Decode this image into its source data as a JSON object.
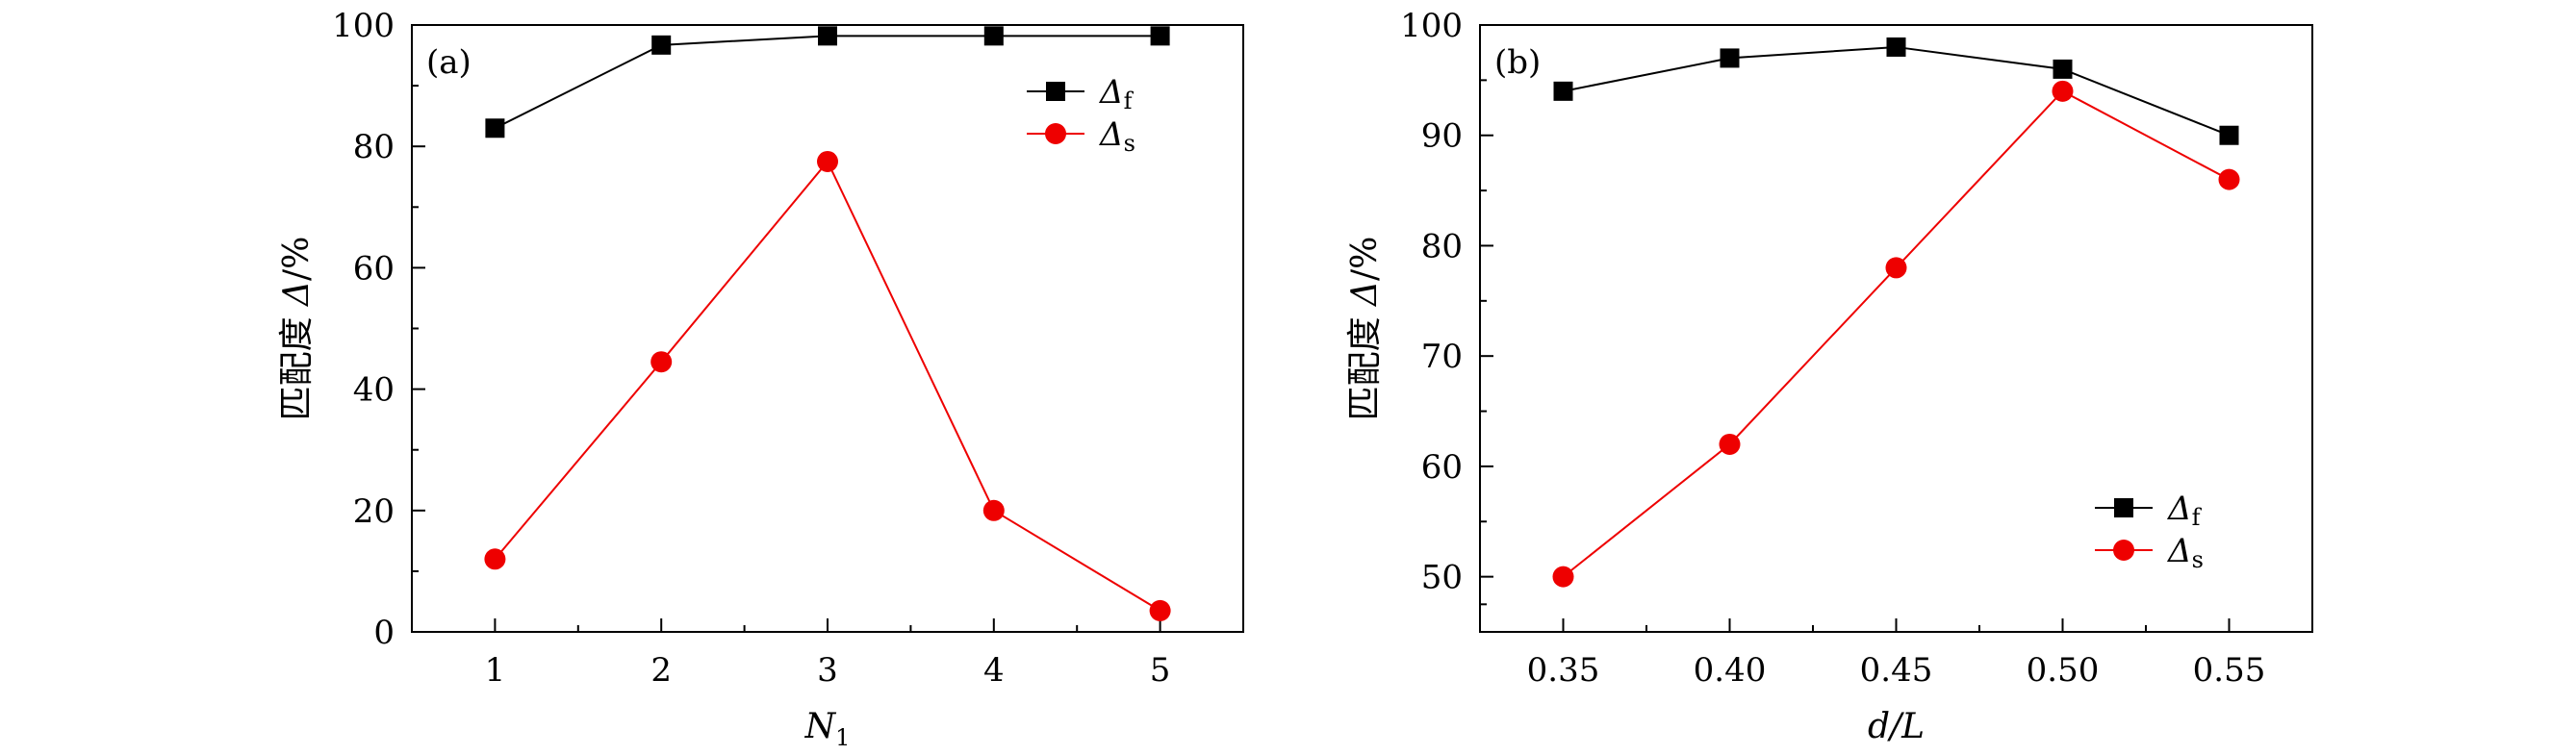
{
  "chart_data": [
    {
      "type": "line",
      "panel_label": "(a)",
      "x": [
        1,
        2,
        3,
        4,
        5
      ],
      "x_tick_labels": [
        "1",
        "2",
        "3",
        "4",
        "5"
      ],
      "xlim": [
        0.5,
        5.5
      ],
      "ylim": [
        0,
        100
      ],
      "y_ticks": [
        0,
        20,
        40,
        60,
        80,
        100
      ],
      "y_tick_labels": [
        "0",
        "20",
        "40",
        "60",
        "80",
        "100"
      ],
      "xlabel": {
        "main": "N",
        "sub": "1"
      },
      "ylabel": {
        "cjk": "匹配度",
        "symbol": "Δ",
        "unit": "/%"
      },
      "legend_position": "top-right",
      "series": [
        {
          "name": {
            "symbol": "Δ",
            "sub": "f"
          },
          "marker": "square",
          "color": "#000000",
          "values": [
            83,
            96.7,
            98.2,
            98.2,
            98.2
          ]
        },
        {
          "name": {
            "symbol": "Δ",
            "sub": "s"
          },
          "marker": "circle",
          "color": "#ee0000",
          "values": [
            12,
            44.5,
            77.5,
            20,
            3.5
          ]
        }
      ]
    },
    {
      "type": "line",
      "panel_label": "(b)",
      "x": [
        0.35,
        0.4,
        0.45,
        0.5,
        0.55
      ],
      "x_tick_labels": [
        "0.35",
        "0.40",
        "0.45",
        "0.50",
        "0.55"
      ],
      "xlim": [
        0.325,
        0.575
      ],
      "ylim": [
        45,
        100
      ],
      "y_ticks": [
        50,
        60,
        70,
        80,
        90,
        100
      ],
      "y_tick_labels": [
        "50",
        "60",
        "70",
        "80",
        "90",
        "100"
      ],
      "xlabel": {
        "main": "d/L",
        "sub": ""
      },
      "ylabel": {
        "cjk": "匹配度",
        "symbol": "Δ",
        "unit": "/%"
      },
      "legend_position": "bottom-right",
      "series": [
        {
          "name": {
            "symbol": "Δ",
            "sub": "f"
          },
          "marker": "square",
          "color": "#000000",
          "values": [
            94,
            97,
            98,
            96,
            90
          ]
        },
        {
          "name": {
            "symbol": "Δ",
            "sub": "s"
          },
          "marker": "circle",
          "color": "#ee0000",
          "values": [
            50,
            62,
            78,
            94,
            86
          ]
        }
      ]
    }
  ]
}
